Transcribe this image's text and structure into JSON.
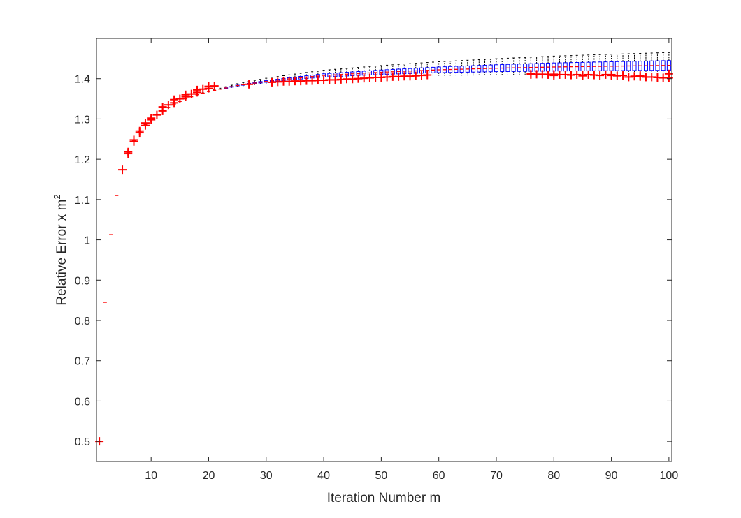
{
  "chart_data": {
    "type": "boxplot",
    "title": "",
    "xlabel": "Iteration Number m",
    "ylabel_main": "Relative Error x m",
    "ylabel_superscript": "2",
    "xlim": [
      0.5,
      100.5
    ],
    "ylim": [
      0.45,
      1.5
    ],
    "xticks": [
      10,
      20,
      30,
      40,
      50,
      60,
      70,
      80,
      90,
      100
    ],
    "yticks": [
      0.5,
      0.6,
      0.7,
      0.8,
      0.9,
      1,
      1.1,
      1.2,
      1.3,
      1.4
    ],
    "grid": false,
    "colors": {
      "box": "#0000ff",
      "whisker": "#000000",
      "median": "#ff0000",
      "outlier": "#ff0000",
      "axes": "#262626"
    },
    "median_curve": [
      [
        1,
        0.5
      ],
      [
        2,
        0.845
      ],
      [
        3,
        1.013
      ],
      [
        4,
        1.11
      ],
      [
        5,
        1.174
      ],
      [
        6,
        1.216
      ],
      [
        7,
        1.246
      ],
      [
        8,
        1.268
      ],
      [
        9,
        1.286
      ],
      [
        10,
        1.3
      ],
      [
        12,
        1.32
      ],
      [
        14,
        1.337
      ],
      [
        16,
        1.35
      ],
      [
        18,
        1.36
      ],
      [
        20,
        1.368
      ],
      [
        25,
        1.383
      ],
      [
        30,
        1.393
      ],
      [
        35,
        1.401
      ],
      [
        40,
        1.408
      ],
      [
        50,
        1.416
      ],
      [
        60,
        1.422
      ],
      [
        70,
        1.426
      ],
      [
        80,
        1.429
      ],
      [
        90,
        1.431
      ],
      [
        100,
        1.433
      ]
    ],
    "spread_curve": [
      [
        1,
        0.0
      ],
      [
        20,
        0.0
      ],
      [
        30,
        0.002
      ],
      [
        40,
        0.004
      ],
      [
        60,
        0.007
      ],
      [
        80,
        0.01
      ],
      [
        100,
        0.012
      ]
    ],
    "whisker_curve": [
      [
        1,
        0.0
      ],
      [
        20,
        0.001
      ],
      [
        30,
        0.006
      ],
      [
        40,
        0.009
      ],
      [
        60,
        0.013
      ],
      [
        80,
        0.017
      ],
      [
        100,
        0.02
      ]
    ],
    "outliers": [
      [
        1,
        0.5
      ],
      [
        5,
        1.174
      ],
      [
        6,
        1.214
      ],
      [
        6,
        1.218
      ],
      [
        7,
        1.244
      ],
      [
        7,
        1.248
      ],
      [
        8,
        1.266
      ],
      [
        8,
        1.27
      ],
      [
        9,
        1.284
      ],
      [
        9,
        1.29
      ],
      [
        10,
        1.298
      ],
      [
        10,
        1.302
      ],
      [
        11,
        1.31
      ],
      [
        12,
        1.32
      ],
      [
        12,
        1.33
      ],
      [
        13,
        1.335
      ],
      [
        14,
        1.34
      ],
      [
        14,
        1.348
      ],
      [
        15,
        1.35
      ],
      [
        16,
        1.355
      ],
      [
        16,
        1.36
      ],
      [
        17,
        1.362
      ],
      [
        18,
        1.366
      ],
      [
        18,
        1.372
      ],
      [
        19,
        1.374
      ],
      [
        20,
        1.376
      ],
      [
        20,
        1.381
      ],
      [
        21,
        1.382
      ],
      [
        27,
        1.386
      ],
      [
        31,
        1.391
      ],
      [
        32,
        1.392
      ],
      [
        33,
        1.393
      ],
      [
        34,
        1.393
      ],
      [
        35,
        1.394
      ],
      [
        36,
        1.394
      ],
      [
        37,
        1.395
      ],
      [
        38,
        1.395
      ],
      [
        39,
        1.396
      ],
      [
        40,
        1.396
      ],
      [
        41,
        1.397
      ],
      [
        42,
        1.397
      ],
      [
        43,
        1.398
      ],
      [
        44,
        1.399
      ],
      [
        45,
        1.399
      ],
      [
        46,
        1.4
      ],
      [
        47,
        1.401
      ],
      [
        48,
        1.402
      ],
      [
        49,
        1.403
      ],
      [
        50,
        1.403
      ],
      [
        51,
        1.404
      ],
      [
        52,
        1.405
      ],
      [
        53,
        1.405
      ],
      [
        54,
        1.406
      ],
      [
        55,
        1.406
      ],
      [
        56,
        1.407
      ],
      [
        57,
        1.408
      ],
      [
        58,
        1.409
      ],
      [
        76,
        1.412
      ],
      [
        77,
        1.411
      ],
      [
        78,
        1.411
      ],
      [
        79,
        1.41
      ],
      [
        80,
        1.411
      ],
      [
        81,
        1.41
      ],
      [
        82,
        1.41
      ],
      [
        83,
        1.409
      ],
      [
        84,
        1.41
      ],
      [
        85,
        1.409
      ],
      [
        86,
        1.41
      ],
      [
        87,
        1.409
      ],
      [
        88,
        1.408
      ],
      [
        89,
        1.41
      ],
      [
        90,
        1.408
      ],
      [
        91,
        1.407
      ],
      [
        92,
        1.408
      ],
      [
        93,
        1.404
      ],
      [
        94,
        1.406
      ],
      [
        95,
        1.405
      ],
      [
        96,
        1.404
      ],
      [
        97,
        1.404
      ],
      [
        98,
        1.403
      ],
      [
        99,
        1.402
      ],
      [
        100,
        1.402
      ],
      [
        76,
        1.41
      ],
      [
        80,
        1.408
      ],
      [
        85,
        1.407
      ],
      [
        90,
        1.41
      ],
      [
        95,
        1.408
      ],
      [
        100,
        1.412
      ]
    ]
  }
}
